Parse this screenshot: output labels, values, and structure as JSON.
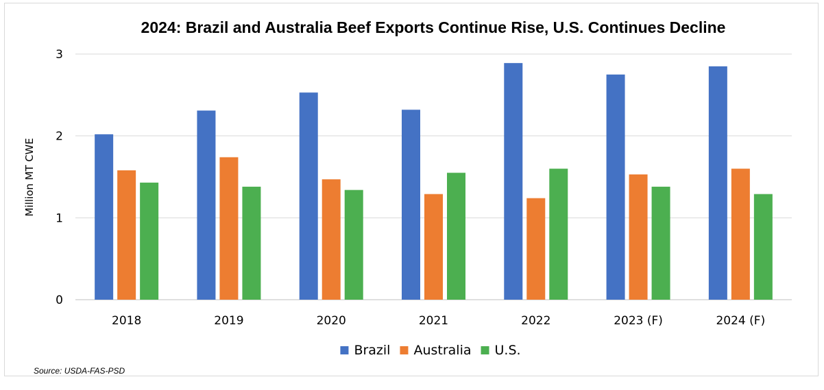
{
  "chart_data": {
    "type": "bar",
    "title": "2024: Brazil and Australia Beef Exports Continue Rise, U.S. Continues Decline",
    "ylabel": "Million MT CWE",
    "xlabel": "",
    "categories": [
      "2018",
      "2019",
      "2020",
      "2021",
      "2022",
      "2023 (F)",
      "2024 (F)"
    ],
    "series": [
      {
        "name": "Brazil",
        "color": "#4472c4",
        "values": [
          2.02,
          2.31,
          2.53,
          2.32,
          2.89,
          2.75,
          2.85
        ]
      },
      {
        "name": "Australia",
        "color": "#ed7d31",
        "values": [
          1.58,
          1.74,
          1.47,
          1.29,
          1.24,
          1.53,
          1.6
        ]
      },
      {
        "name": "U.S.",
        "color": "#4caf50",
        "values": [
          1.43,
          1.38,
          1.34,
          1.55,
          1.6,
          1.38,
          1.29
        ]
      }
    ],
    "ylim": [
      0,
      3
    ],
    "yticks": [
      "0",
      "1",
      "2",
      "3"
    ],
    "grid": true,
    "legend_position": "bottom",
    "source": "Source: USDA-FAS-PSD"
  }
}
